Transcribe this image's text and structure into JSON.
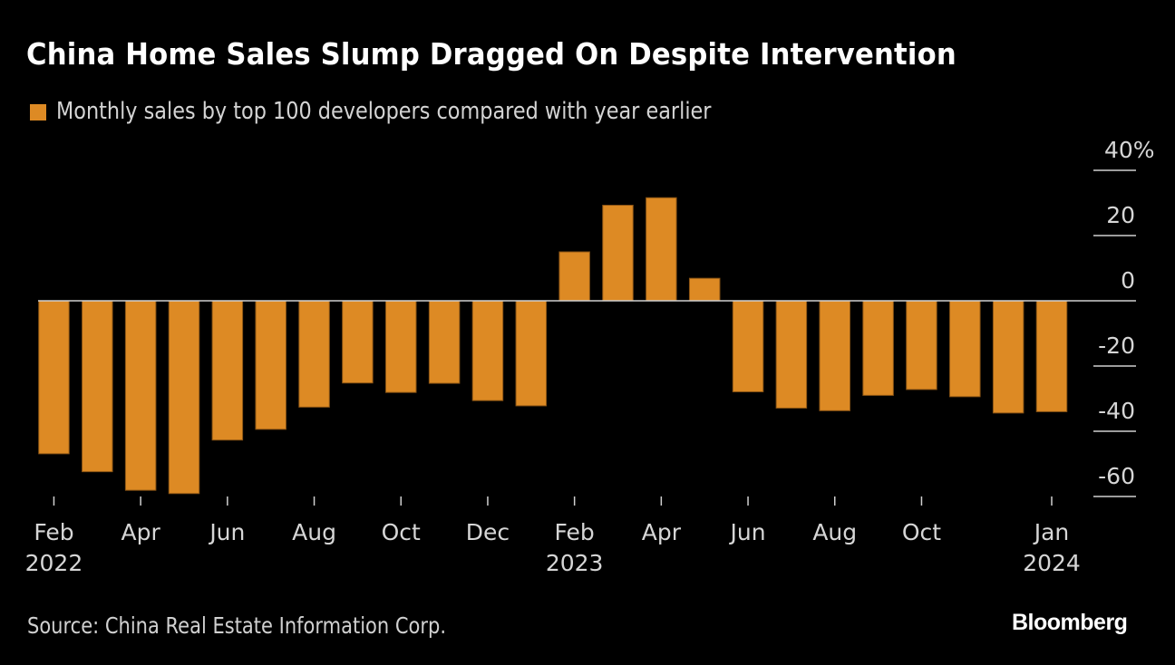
{
  "header": {
    "title": "China Home Sales Slump Dragged On Despite Intervention"
  },
  "legend": {
    "items": [
      {
        "label": "Monthly sales by top 100 developers compared with year earlier",
        "color": "#DD8A24"
      }
    ]
  },
  "footer": {
    "source": "Source: China Real Estate Information Corp.",
    "brand": "Bloomberg"
  },
  "colors": {
    "background": "#000000",
    "bar": "#DD8A24",
    "bar_outline": "#8A5414",
    "gridline": "#d0d0d0",
    "text": "#d6d6d6"
  },
  "chart_data": {
    "type": "bar",
    "title": "China Home Sales Slump Dragged On Despite Intervention",
    "subtitle": "Monthly sales by top 100 developers compared with year earlier",
    "xlabel": "",
    "ylabel": "",
    "unit": "%",
    "ylim": [
      -60,
      40
    ],
    "yticks": [
      40,
      20,
      0,
      -20,
      -40,
      -60
    ],
    "ytick_labels": [
      "40%",
      "20",
      "0",
      "-20",
      "-40",
      "-60"
    ],
    "y_axis_position": "right",
    "grid": false,
    "legend_position": "top-left",
    "categories": [
      "2022-02",
      "2022-03",
      "2022-04",
      "2022-05",
      "2022-06",
      "2022-07",
      "2022-08",
      "2022-09",
      "2022-10",
      "2022-11",
      "2022-12",
      "2023-01",
      "2023-02",
      "2023-03",
      "2023-04",
      "2023-05",
      "2023-06",
      "2023-07",
      "2023-08",
      "2023-09",
      "2023-10",
      "2023-11",
      "2023-12",
      "2024-01"
    ],
    "xtick_labels": [
      {
        "index": 0,
        "month": "Feb",
        "year": "2022"
      },
      {
        "index": 2,
        "month": "Apr",
        "year": ""
      },
      {
        "index": 4,
        "month": "Jun",
        "year": ""
      },
      {
        "index": 6,
        "month": "Aug",
        "year": ""
      },
      {
        "index": 8,
        "month": "Oct",
        "year": ""
      },
      {
        "index": 10,
        "month": "Dec",
        "year": ""
      },
      {
        "index": 12,
        "month": "Feb",
        "year": "2023"
      },
      {
        "index": 14,
        "month": "Apr",
        "year": ""
      },
      {
        "index": 16,
        "month": "Jun",
        "year": ""
      },
      {
        "index": 18,
        "month": "Aug",
        "year": ""
      },
      {
        "index": 20,
        "month": "Oct",
        "year": ""
      },
      {
        "index": 23,
        "month": "Jan",
        "year": "2024"
      }
    ],
    "series": [
      {
        "name": "Monthly sales by top 100 developers compared with year earlier",
        "values": [
          -46.9,
          -52.4,
          -58.1,
          -59.1,
          -42.7,
          -39.4,
          -32.6,
          -25.2,
          -28.1,
          -25.3,
          -30.6,
          -32.2,
          15.0,
          29.3,
          31.6,
          6.9,
          -27.9,
          -32.9,
          -33.7,
          -29.0,
          -27.2,
          -29.4,
          -34.4,
          -34.0
        ]
      }
    ]
  }
}
